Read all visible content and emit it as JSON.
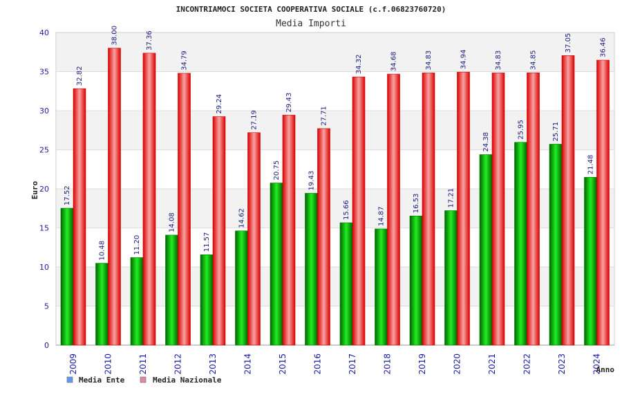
{
  "chart_data": {
    "type": "bar",
    "title": "INCONTRIAMOCI SOCIETA COOPERATIVA SOCIALE (c.f.06823760720)",
    "subtitle": "Media Importi",
    "xlabel": "Anno",
    "ylabel": "Euro",
    "ylim": [
      0,
      40
    ],
    "yticks": [
      0,
      5,
      10,
      15,
      20,
      25,
      30,
      35,
      40
    ],
    "grid": true,
    "legend_position": "bottom-left",
    "categories": [
      "2009",
      "2010",
      "2011",
      "2012",
      "2013",
      "2014",
      "2015",
      "2016",
      "2017",
      "2018",
      "2019",
      "2020",
      "2021",
      "2022",
      "2023",
      "2024"
    ],
    "series": [
      {
        "name": "Media Ente",
        "color": "#00aa00",
        "legend_color": "#6699ee",
        "values": [
          17.52,
          10.48,
          11.2,
          14.08,
          11.57,
          14.62,
          20.75,
          19.43,
          15.66,
          14.87,
          16.53,
          17.21,
          24.38,
          25.95,
          25.71,
          21.48
        ],
        "labels": [
          "17.52",
          "10.48",
          "11.20",
          "14.08",
          "11.57",
          "14.62",
          "20.75",
          "19.43",
          "15.66",
          "14.87",
          "16.53",
          "17.21",
          "24.38",
          "25.95",
          "25.71",
          "21.48"
        ]
      },
      {
        "name": "Media Nazionale",
        "color": "#ee1111",
        "legend_color": "#dd88aa",
        "values": [
          32.82,
          38.0,
          37.36,
          34.79,
          29.24,
          27.19,
          29.43,
          27.71,
          34.32,
          34.68,
          34.83,
          34.94,
          34.83,
          34.85,
          37.05,
          36.46
        ],
        "labels": [
          "32.82",
          "38.00",
          "37.36",
          "34.79",
          "29.24",
          "27.19",
          "29.43",
          "27.71",
          "34.32",
          "34.68",
          "34.83",
          "34.94",
          "34.83",
          "34.85",
          "37.05",
          "36.46"
        ]
      }
    ]
  }
}
